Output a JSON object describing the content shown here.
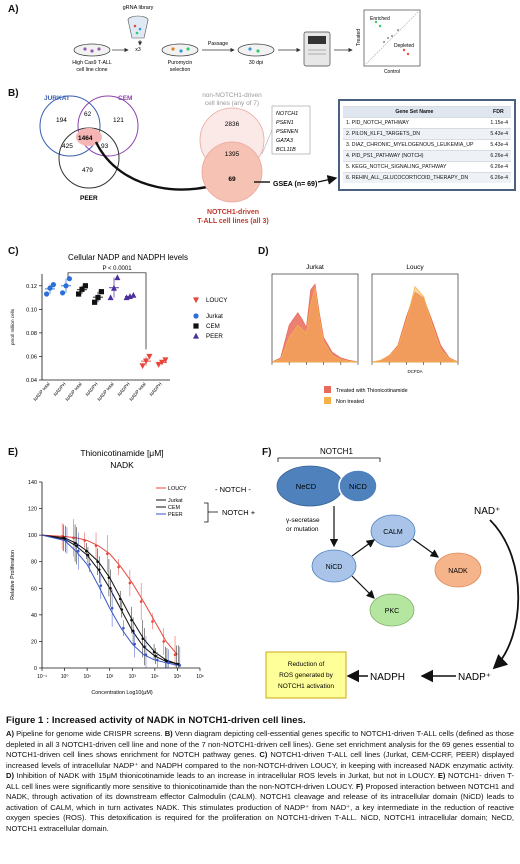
{
  "panelA": {
    "label": "A)",
    "library_label": "gRNA library",
    "multiplier": "x3",
    "passage_label": "Passage",
    "step1": "High Cas9 T-ALL cell line clone",
    "step2": "Puromycin selection",
    "step3": "30 dpi",
    "axis_treated": "Treated",
    "axis_control": "Control",
    "enriched": "Enriched",
    "depleted": "Depleted"
  },
  "panelB": {
    "label": "B)",
    "venn_jurkat": "JURKAT",
    "venn_cem": "CEM",
    "venn_peer": "PEER",
    "n194": "194",
    "n62": "62",
    "n121": "121",
    "n425": "425",
    "n1464": "1464",
    "n93": "93",
    "n479": "479",
    "non_notch_title_1": "non-NOTCH1-driven",
    "non_notch_title_2": "cell lines (any of 7)",
    "n2836": "2836",
    "n1395": "1395",
    "n69": "69",
    "genes": [
      "NOTCH1",
      "PSEN1",
      "PSENEN",
      "GATA3",
      "BCL11B"
    ],
    "notch_label_1": "NOTCH1-driven",
    "notch_label_2": "T-ALL cell lines (all 3)",
    "gsea": "GSEA (n= 69)",
    "table_header_name": "Gene Set Name",
    "table_header_fdr": "FDR",
    "gene_sets": [
      {
        "name": "1. PID_NOTCH_PATHWAY",
        "fdr": "1.15e-4"
      },
      {
        "name": "2. PILON_KLF1_TARGETS_DN",
        "fdr": "5.43e-4"
      },
      {
        "name": "3. DIAZ_CHRONIC_MYELOGENOUS_LEUKEMIA_UP",
        "fdr": "5.43e-4"
      },
      {
        "name": "4. PID_PS1_PATHWAY (NOTCH)",
        "fdr": "6.26e-4"
      },
      {
        "name": "5. KEGG_NOTCH_SIGNALING_PATHWAY",
        "fdr": "6.26e-4"
      },
      {
        "name": "6. REHIN_ALL_GLUCOCORTICOID_THERAPY_DN",
        "fdr": "6.26e-4"
      }
    ]
  },
  "panelC": {
    "label": "C)",
    "colors": {
      "LOUCY": "#e8453c",
      "Jurkat": "#2a6fdb",
      "CEM": "#111111",
      "PEER": "#4b2f9e"
    }
  },
  "panelD": {
    "label": "D)",
    "title_left": "Jurkat",
    "title_right": "Loucy",
    "xlabel": "DCFDA",
    "legend_treated": "Treated with Thionicotinamide",
    "legend_non": "Non treated",
    "color_treated": "#e86a5a",
    "color_non": "#f6b24a"
  },
  "panelE": {
    "label": "E)",
    "notch_minus": "- NOTCH -",
    "notch_plus": "NOTCH +"
  },
  "panelF": {
    "label": "F)",
    "notch1": "NOTCH1",
    "necd": "NeCD",
    "nicd_top": "NiCD",
    "secretase_1": "γ-secretase",
    "secretase_2": "or mutation",
    "nicd": "NiCD",
    "calm": "CALM",
    "pkc": "PKC",
    "nadk": "NADK",
    "nad_plus": "NAD⁺",
    "nadp_plus": "NADP⁺",
    "nadph": "NADPH",
    "ros_1": "Reduction of",
    "ros_2": "ROS generated by",
    "ros_3": "NOTCH1 activation"
  },
  "chart_data": [
    {
      "type": "scatter",
      "title": "Cellular NADP and NADPH levels",
      "ylabel": "pmol/ million cells",
      "ylim": [
        0.04,
        0.13
      ],
      "yticks": [
        "0.04",
        "0.06",
        "0.08",
        "0.10",
        "0.12"
      ],
      "categories": [
        "NADP total",
        "NADPH",
        "NADP total",
        "NADPH",
        "NADP total",
        "NADPH",
        "NADP total",
        "NADPH"
      ],
      "annotation": "P < 0.0001",
      "legend": [
        "LOUCY",
        "Jurkat",
        "CEM",
        "PEER"
      ],
      "series": [
        {
          "name": "Jurkat",
          "x_index": [
            0,
            0,
            0,
            1,
            1,
            1
          ],
          "values": [
            0.113,
            0.118,
            0.121,
            0.114,
            0.12,
            0.126
          ]
        },
        {
          "name": "CEM",
          "x_index": [
            2,
            2,
            2,
            3,
            3,
            3
          ],
          "values": [
            0.113,
            0.117,
            0.12,
            0.106,
            0.11,
            0.115
          ]
        },
        {
          "name": "PEER",
          "x_index": [
            4,
            4,
            4,
            5,
            5,
            5
          ],
          "values": [
            0.11,
            0.118,
            0.127,
            0.11,
            0.111,
            0.112
          ]
        },
        {
          "name": "LOUCY",
          "x_index": [
            6,
            6,
            6,
            7,
            7,
            7
          ],
          "values": [
            0.052,
            0.056,
            0.06,
            0.053,
            0.055,
            0.057
          ]
        }
      ]
    },
    {
      "type": "area",
      "title": "Jurkat",
      "xlabel": "DCFDA",
      "series": [
        {
          "name": "Treated with Thionicotinamide",
          "x": [
            0,
            0.1,
            0.2,
            0.3,
            0.35,
            0.4,
            0.45,
            0.5,
            0.55,
            0.6,
            0.7,
            0.8,
            0.9,
            1
          ],
          "values": [
            0,
            0.05,
            0.45,
            0.6,
            0.52,
            0.42,
            0.88,
            0.95,
            0.6,
            0.3,
            0.12,
            0.05,
            0.02,
            0
          ]
        },
        {
          "name": "Non treated",
          "x": [
            0,
            0.1,
            0.2,
            0.3,
            0.35,
            0.4,
            0.45,
            0.5,
            0.55,
            0.6,
            0.7,
            0.8,
            0.9,
            1
          ],
          "values": [
            0,
            0.03,
            0.3,
            0.45,
            0.4,
            0.35,
            0.7,
            0.9,
            0.55,
            0.25,
            0.08,
            0.03,
            0.01,
            0
          ]
        }
      ]
    },
    {
      "type": "area",
      "title": "Loucy",
      "xlabel": "DCFDA",
      "series": [
        {
          "name": "Treated with Thionicotinamide",
          "x": [
            0,
            0.1,
            0.2,
            0.3,
            0.4,
            0.5,
            0.6,
            0.7,
            0.8,
            0.9,
            1
          ],
          "values": [
            0,
            0.02,
            0.08,
            0.2,
            0.55,
            0.85,
            0.78,
            0.5,
            0.2,
            0.05,
            0
          ]
        },
        {
          "name": "Non treated",
          "x": [
            0,
            0.1,
            0.2,
            0.3,
            0.4,
            0.5,
            0.6,
            0.7,
            0.8,
            0.9,
            1
          ],
          "values": [
            0,
            0.02,
            0.08,
            0.18,
            0.5,
            0.92,
            0.8,
            0.45,
            0.15,
            0.04,
            0
          ]
        }
      ]
    },
    {
      "type": "line",
      "title": "Thionicotinamide [μM]",
      "subtitle": "NADK",
      "xlabel": "Concentration Log10(μM)",
      "ylabel": "Relative Proliferation",
      "ylim": [
        0,
        140
      ],
      "yticks": [
        "0",
        "20",
        "40",
        "60",
        "80",
        "100",
        "120",
        "140"
      ],
      "xticks": [
        "10⁻¹",
        "10⁰",
        "10¹",
        "10²",
        "10³",
        "10⁴",
        "10⁵",
        "10⁶"
      ],
      "x": [
        -1,
        0,
        0.5,
        1,
        1.5,
        2,
        2.5,
        3,
        3.5,
        4,
        4.5,
        5
      ],
      "series": [
        {
          "name": "LOUCY",
          "values": [
            100,
            99,
            98,
            96,
            92,
            86,
            76,
            64,
            50,
            35,
            20,
            10
          ]
        },
        {
          "name": "Jurkat",
          "values": [
            100,
            98,
            94,
            88,
            80,
            68,
            52,
            36,
            22,
            12,
            6,
            3
          ]
        },
        {
          "name": "CEM",
          "values": [
            100,
            97,
            92,
            85,
            74,
            60,
            44,
            28,
            16,
            9,
            5,
            3
          ]
        },
        {
          "name": "PEER",
          "values": [
            100,
            96,
            88,
            78,
            62,
            45,
            30,
            18,
            10,
            6,
            4,
            2
          ]
        }
      ],
      "colors": {
        "LOUCY": "#e8453c",
        "Jurkat": "#111111",
        "CEM": "#111111",
        "PEER": "#3a55c8"
      }
    }
  ],
  "caption": {
    "title": "Figure 1 : Increased activity of NADK in NOTCH1-driven cell lines.",
    "parts": [
      {
        "b": "A)",
        "t": " Pipeline for genome wide CRISPR screens. "
      },
      {
        "b": "B)",
        "t": " Venn diagram depicting cell-essential genes specific to NOTCH1-driven T-ALL cells (defined as those depleted in all 3 NOTCH1-driven cell line and none of the 7 non-NOTCH1-driven cell lines). Gene set enrichment analysis for the 69 genes essential to NOTCH1-driven cell lines shows enrichment for NOTCH pathway genes. "
      },
      {
        "b": "C)",
        "t": " NOTCH1-driven T-ALL cell lines (Jurkat, CEM-CCRF, PEER) displayed increased levels of intracellular NADP⁺ and NADPH compared to the non-NOTCH-driven LOUCY, in keeping with increased NADK enzymatic activity. "
      },
      {
        "b": "D)",
        "t": " Inhibition of NADK with 15μM thionicotinamide leads to an increase in intracellular ROS levels in Jurkat, but not in LOUCY. "
      },
      {
        "b": "E)",
        "t": " NOTCH1- driven T-ALL cell lines were significantly more sensitive to thionicotinamide than the non-NOTCH-driven LOUCY. "
      },
      {
        "b": "F)",
        "t": " Proposed interaction between NOTCH1 and NADK, through activation of its downstream effector Calmodulin (CALM). NOTCH1 cleavage and release of its intracellular domain (NiCD) leads to activation of CALM, which in turn activates NADK. This stimulates production of NADP⁺ from NAD⁺, a key intermediate in the reduction of reactive oxygen species (ROS). This detoxification is required for the proliferation on NOTCH1-driven T-ALL. NiCD, NOTCH1 intracellular domain; NeCD, NOTCH1 extracellular domain."
      }
    ]
  }
}
